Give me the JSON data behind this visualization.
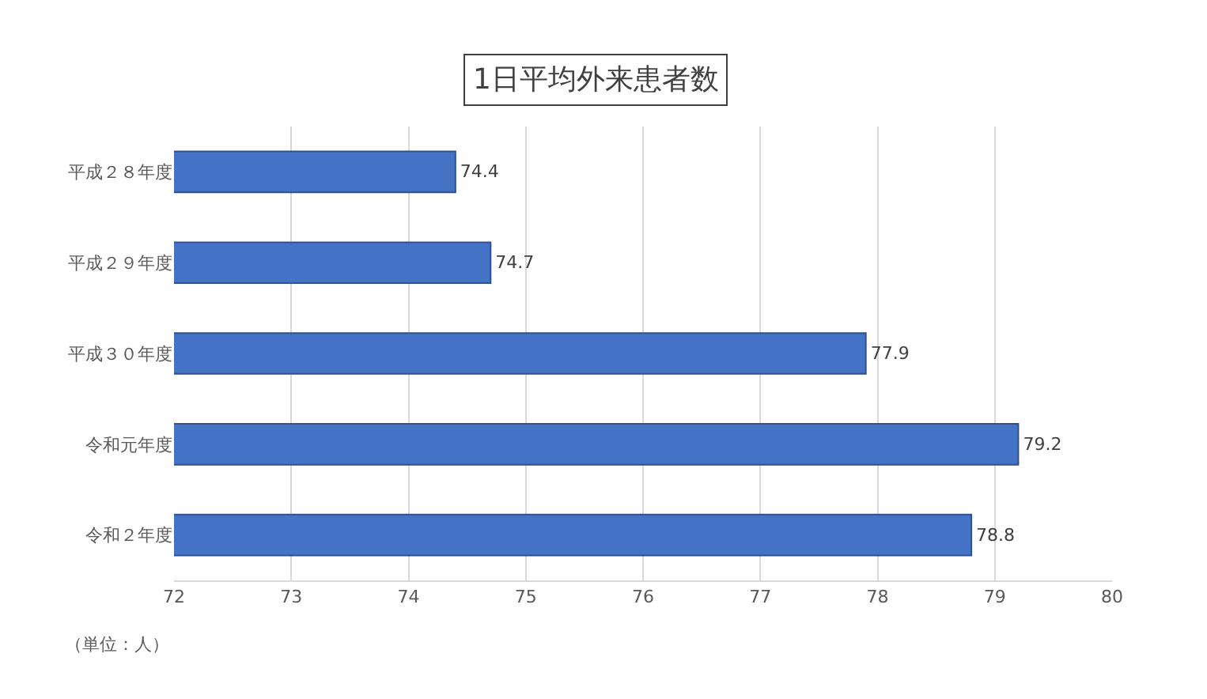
{
  "chart_data": {
    "type": "bar",
    "orientation": "horizontal",
    "title": "1日平均外来患者数",
    "categories": [
      "平成２８年度",
      "平成２９年度",
      "平成３０年度",
      "令和元年度",
      "令和２年度"
    ],
    "values": [
      74.4,
      74.7,
      77.9,
      79.2,
      78.8
    ],
    "color": "#4472c4",
    "xlim": [
      72,
      80
    ],
    "xticks": [
      72,
      73,
      74,
      75,
      76,
      77,
      78,
      79,
      80
    ],
    "grid": "x",
    "data_labels": true,
    "annotations": [
      "（単位：人）"
    ]
  }
}
